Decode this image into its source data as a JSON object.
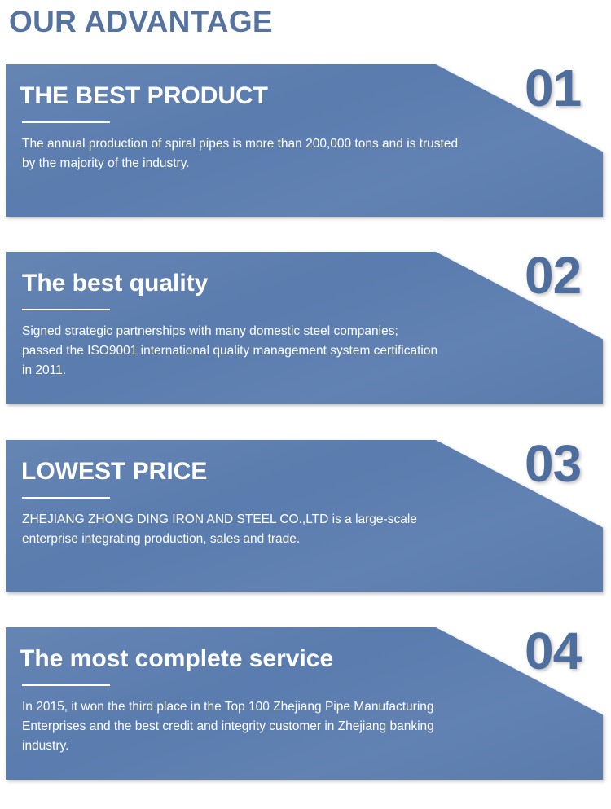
{
  "page_title": "OUR ADVANTAGE",
  "colors": {
    "card": "#5b7dae",
    "title": "#55739f",
    "number": "#4e6e9e"
  },
  "cards": [
    {
      "number": "01",
      "heading": "THE BEST PRODUCT",
      "text": "The annual production of spiral pipes is more than 200,000 tons and is trusted by the majority of the industry."
    },
    {
      "number": "02",
      "heading": "The best quality",
      "text": "Signed strategic partnerships with many domestic steel companies; passed the ISO9001 international quality management system certification in 2011."
    },
    {
      "number": "03",
      "heading": "LOWEST PRICE",
      "text": "ZHEJIANG ZHONG DING IRON AND STEEL CO.,LTD is a large-scale enterprise integrating production, sales and trade."
    },
    {
      "number": "04",
      "heading": "The most complete service",
      "text": "In 2015, it won the third place in the Top 100 Zhejiang Pipe Manufacturing Enterprises and the best credit and integrity customer in Zhejiang banking industry."
    }
  ]
}
